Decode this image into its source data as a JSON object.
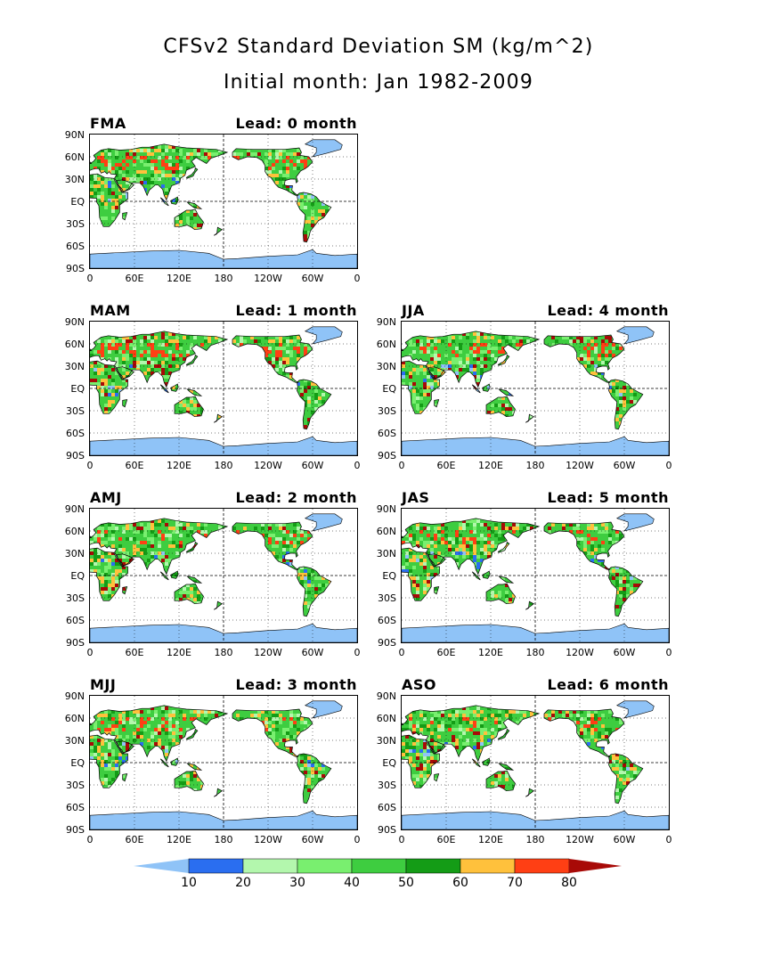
{
  "title": "CFSv2 Standard Deviation SM (kg/m^2)",
  "subtitle": "Initial month: Jan 1982-2009",
  "lat_labels": [
    "90N",
    "60N",
    "30N",
    "EQ",
    "30S",
    "60S",
    "90S"
  ],
  "lon_labels": [
    "0",
    "60E",
    "120E",
    "180",
    "120W",
    "60W",
    "0"
  ],
  "panels": [
    {
      "season": "FMA",
      "lead": "Lead: 0 month"
    },
    {
      "season": "MAM",
      "lead": "Lead: 1 month"
    },
    {
      "season": "JJA",
      "lead": "Lead: 4 month"
    },
    {
      "season": "AMJ",
      "lead": "Lead: 2 month"
    },
    {
      "season": "JAS",
      "lead": "Lead: 5 month"
    },
    {
      "season": "MJJ",
      "lead": "Lead: 3 month"
    },
    {
      "season": "ASO",
      "lead": "Lead: 6 month"
    }
  ],
  "colorbar": {
    "labels": [
      "10",
      "20",
      "30",
      "40",
      "50",
      "60",
      "70",
      "80"
    ],
    "colors": [
      "#8fc3f7",
      "#2a6ef0",
      "#b3f7ad",
      "#79ef6f",
      "#3ecd40",
      "#149c16",
      "#ffc13c",
      "#ff3f14",
      "#a80a07"
    ]
  },
  "colors": {
    "ocean": "#ffffff",
    "ice": "#8fc3f7",
    "land_base": "#3ecd40",
    "grid": "#000000"
  }
}
